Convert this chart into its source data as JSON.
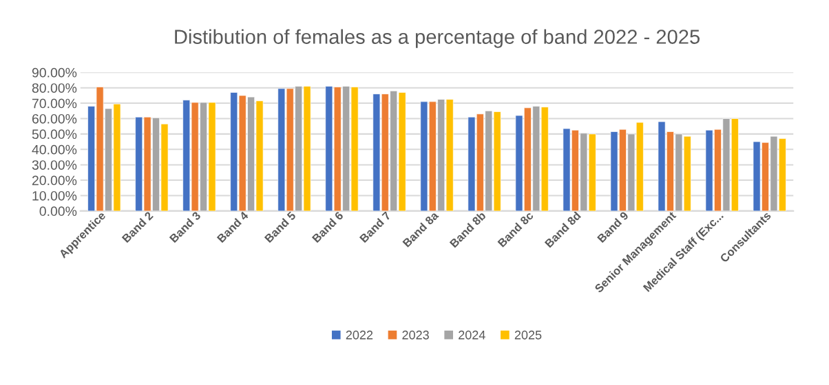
{
  "chart_data": {
    "type": "bar",
    "title": "Distibution of females as a percentage of band 2022 - 2025",
    "categories": [
      "Apprentice",
      "Band 2",
      "Band 3",
      "Band 4",
      "Band 5",
      "Band 6",
      "Band 7",
      "Band 8a",
      "Band 8b",
      "Band 8c",
      "Band 8d",
      "Band 9",
      "Senior Management",
      "Medical Staff (Exc...",
      "Consultants"
    ],
    "series": [
      {
        "name": "2022",
        "color": "#4472c4",
        "values": [
          68,
          61,
          72,
          77,
          79.5,
          81,
          76,
          71,
          61,
          62,
          53.5,
          51.5,
          58,
          52.5,
          45
        ]
      },
      {
        "name": "2023",
        "color": "#ed7d31",
        "values": [
          80.5,
          61,
          70.5,
          75,
          79.5,
          80.5,
          76,
          71,
          63,
          67,
          52.5,
          53,
          51.5,
          53,
          44.5
        ]
      },
      {
        "name": "2024",
        "color": "#a5a5a5",
        "values": [
          66.5,
          60.5,
          70.5,
          74,
          81,
          81,
          78,
          72.5,
          65,
          68,
          50.5,
          50,
          50,
          60,
          48.5
        ]
      },
      {
        "name": "2025",
        "color": "#ffc000",
        "values": [
          69.5,
          56.5,
          70.5,
          71.5,
          81,
          80.5,
          77,
          72.5,
          64.5,
          67.5,
          50,
          57.5,
          48.5,
          60,
          47
        ]
      }
    ],
    "ylim": [
      0,
      90
    ],
    "yticks": [
      {
        "value": 0,
        "label": "0.00%"
      },
      {
        "value": 10,
        "label": "10.00%"
      },
      {
        "value": 20,
        "label": "20.00%"
      },
      {
        "value": 30,
        "label": "30.00%"
      },
      {
        "value": 40,
        "label": "40.00%"
      },
      {
        "value": 50,
        "label": "50.00%"
      },
      {
        "value": 60,
        "label": "60.00%"
      },
      {
        "value": 70,
        "label": "70.00%"
      },
      {
        "value": 80,
        "label": "80.00%"
      },
      {
        "value": 90,
        "label": "90.00%"
      }
    ],
    "grid": "y",
    "legend": "bottom"
  }
}
